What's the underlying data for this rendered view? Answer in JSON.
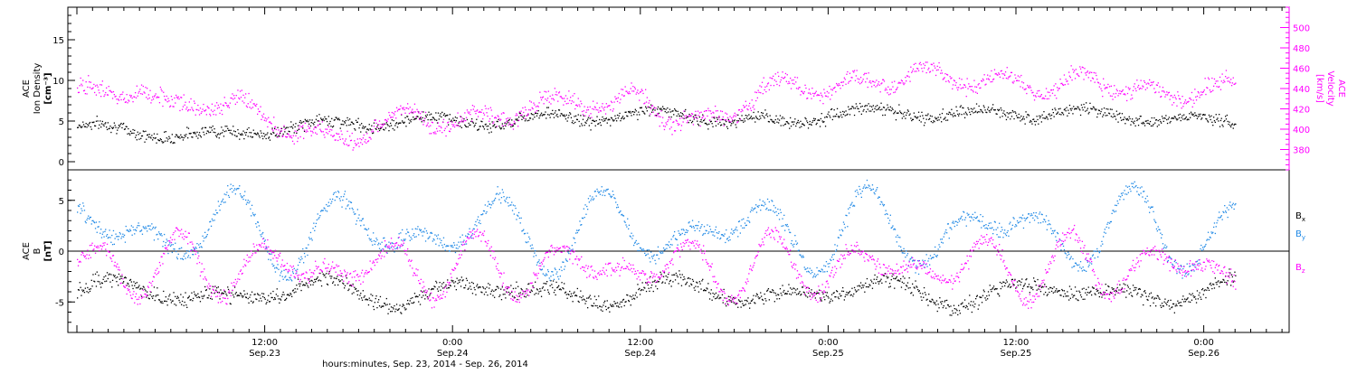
{
  "chart_data": [
    {
      "type": "scatter",
      "panel": "top",
      "ylabel_left": [
        "ACE",
        "Ion Density",
        "[cm⁻³]"
      ],
      "ylabel_right": [
        "ACE",
        "Velocity",
        "[km/s]"
      ],
      "ylim_left": [
        -1,
        19
      ],
      "yticks_left": [
        "0",
        "5",
        "10",
        "15"
      ],
      "ylim_right": [
        360,
        520
      ],
      "yticks_right": [
        "380",
        "400",
        "420",
        "440",
        "460",
        "480",
        "500"
      ],
      "series": [
        {
          "name": "Ion Density",
          "axis": "left",
          "color": "#000000",
          "anchors_hours": [
            0,
            3,
            6,
            9,
            12,
            15,
            18,
            21,
            24,
            27,
            30,
            33,
            36,
            39,
            42,
            45,
            48,
            51,
            54,
            57,
            60,
            63,
            66,
            69,
            72,
            74
          ],
          "anchors_values": [
            4.5,
            3.8,
            3.5,
            3.2,
            4.0,
            4.5,
            4.8,
            5.2,
            5.0,
            5.0,
            5.5,
            5.5,
            5.8,
            6.0,
            5.0,
            4.8,
            6.0,
            6.2,
            6.0,
            5.8,
            6.0,
            6.2,
            5.8,
            5.5,
            5.0,
            5.0
          ]
        },
        {
          "name": "Velocity",
          "axis": "right",
          "color": "#ff00ff",
          "anchors_hours": [
            0,
            2,
            4,
            6,
            8,
            10,
            12,
            14,
            16,
            18,
            20,
            22,
            24,
            26,
            28,
            30,
            32,
            34,
            36,
            38,
            40,
            42,
            44,
            46,
            48,
            50,
            52,
            54,
            56,
            58,
            60,
            62,
            64,
            66,
            68,
            70,
            72,
            74
          ],
          "anchors_values": [
            440,
            430,
            445,
            420,
            425,
            430,
            410,
            400,
            390,
            395,
            410,
            415,
            405,
            412,
            418,
            425,
            430,
            420,
            435,
            410,
            405,
            420,
            440,
            445,
            440,
            445,
            450,
            455,
            450,
            448,
            445,
            440,
            450,
            445,
            440,
            430,
            445,
            440
          ]
        }
      ]
    },
    {
      "type": "scatter",
      "panel": "bottom",
      "ylabel_left": [
        "ACE",
        "B",
        "[nT]"
      ],
      "ylim": [
        -8,
        8
      ],
      "yticks": [
        "-5",
        "0",
        "5"
      ],
      "zero_line": true,
      "legend_placement": "right",
      "series": [
        {
          "name": "B",
          "subscript": "x",
          "color": "#000000",
          "center": -4.0,
          "amp": 1.5
        },
        {
          "name": "B",
          "subscript": "y",
          "color": "#1e88e5",
          "center": 2.0,
          "amp": 4.5
        },
        {
          "name": "B",
          "subscript": "z",
          "color": "#ff00ff",
          "center": -1.5,
          "amp": 3.5
        }
      ]
    }
  ],
  "x_axis": {
    "tick_labels": [
      {
        "time": "12:00",
        "date": "Sep.23"
      },
      {
        "time": "0:00",
        "date": "Sep.24"
      },
      {
        "time": "12:00",
        "date": "Sep.24"
      },
      {
        "time": "0:00",
        "date": "Sep.25"
      },
      {
        "time": "12:00",
        "date": "Sep.25"
      },
      {
        "time": "0:00",
        "date": "Sep.26"
      }
    ],
    "label": "hours:minutes, Sep. 23, 2014 - Sep. 26, 2014"
  }
}
